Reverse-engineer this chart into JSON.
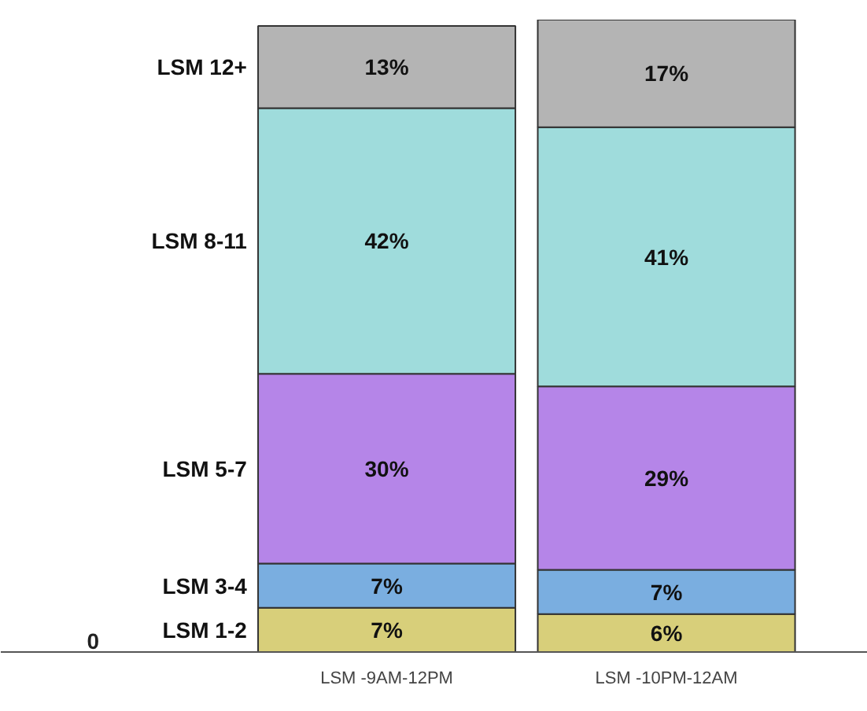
{
  "chart_data": {
    "type": "bar",
    "stacked": true,
    "categories": [
      "LSM -9AM-12PM",
      "LSM -10PM-12AM"
    ],
    "series": [
      {
        "name": "LSM 1-2",
        "color": "#d8cf7a",
        "values": [
          7,
          6
        ],
        "value_labels": [
          "7%",
          "6%"
        ]
      },
      {
        "name": "LSM 3-4",
        "color": "#7aaee0",
        "values": [
          7,
          7
        ],
        "value_labels": [
          "7%",
          "7%"
        ]
      },
      {
        "name": "LSM 5-7",
        "color": "#b585e8",
        "values": [
          30,
          29
        ],
        "value_labels": [
          "30%",
          "29%"
        ]
      },
      {
        "name": "LSM 8-11",
        "color": "#9fdcdc",
        "values": [
          42,
          41
        ],
        "value_labels": [
          "42%",
          "41%"
        ]
      },
      {
        "name": "LSM 12+",
        "color": "#b4b4b4",
        "values": [
          13,
          17
        ],
        "value_labels": [
          "13%",
          "17%"
        ]
      }
    ],
    "annotations": [
      "0"
    ],
    "grid": false,
    "legend": false
  }
}
